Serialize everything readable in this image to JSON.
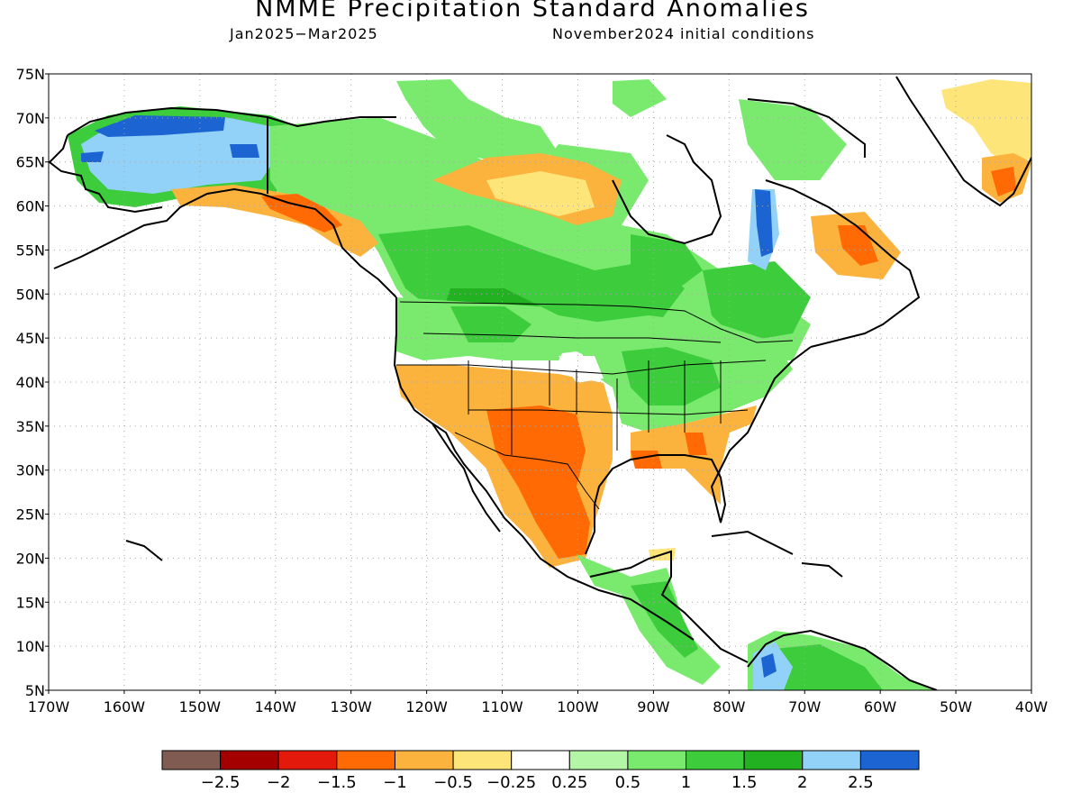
{
  "title": "NMME Precipitation Standard Anomalies",
  "subtitle_period": "Jan2025−Mar2025",
  "subtitle_ic": "November2024 initial conditions",
  "lat_labels": [
    "75N",
    "70N",
    "65N",
    "60N",
    "55N",
    "50N",
    "45N",
    "40N",
    "35N",
    "30N",
    "25N",
    "20N",
    "15N",
    "10N",
    "5N"
  ],
  "lon_labels": [
    "170W",
    "160W",
    "150W",
    "140W",
    "130W",
    "120W",
    "110W",
    "100W",
    "90W",
    "80W",
    "70W",
    "60W",
    "50W",
    "40W"
  ],
  "colorbar": {
    "colors": [
      "#7f5b51",
      "#a50000",
      "#e31a0b",
      "#ff6a05",
      "#fbb33d",
      "#fde57a",
      "#ffffff",
      "#b3f7a6",
      "#79ea6d",
      "#3ccc3c",
      "#21b121",
      "#92d2f8",
      "#1c64d2"
    ],
    "labels": [
      "−2.5",
      "−2",
      "−1.5",
      "−1",
      "−0.5",
      "−0.25",
      "0.25",
      "0.5",
      "1",
      "1.5",
      "2",
      "2.5"
    ]
  },
  "grid": "dotted"
}
